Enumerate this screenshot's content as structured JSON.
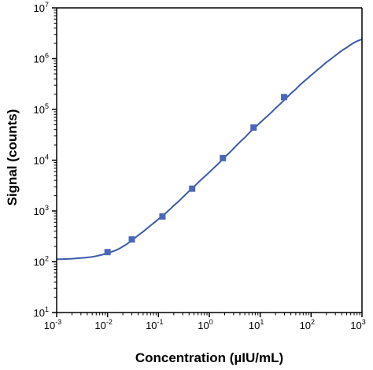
{
  "chart_data": {
    "type": "scatter",
    "xlabel": "Concentration (µIU/mL)",
    "ylabel": "Signal (counts)",
    "x_scale": "log",
    "y_scale": "log",
    "xlim": [
      0.001,
      1000
    ],
    "ylim": [
      10,
      10000000
    ],
    "x_ticks": [
      {
        "base": "10",
        "exp": "-3"
      },
      {
        "base": "10",
        "exp": "-2"
      },
      {
        "base": "10",
        "exp": "-1"
      },
      {
        "base": "10",
        "exp": "0"
      },
      {
        "base": "10",
        "exp": "1"
      },
      {
        "base": "10",
        "exp": "2"
      },
      {
        "base": "10",
        "exp": "3"
      }
    ],
    "y_ticks": [
      {
        "base": "10",
        "exp": "1"
      },
      {
        "base": "10",
        "exp": "2"
      },
      {
        "base": "10",
        "exp": "3"
      },
      {
        "base": "10",
        "exp": "4"
      },
      {
        "base": "10",
        "exp": "5"
      },
      {
        "base": "10",
        "exp": "6"
      },
      {
        "base": "10",
        "exp": "7"
      }
    ],
    "grid": false,
    "series": [
      {
        "kind": "points",
        "marker": "square",
        "color": "#4a66ba",
        "x": [
          0.01,
          0.03,
          0.12,
          0.46,
          1.85,
          7.4,
          29.5
        ],
        "y": [
          155,
          275,
          780,
          2750,
          11000,
          44000,
          175000
        ]
      },
      {
        "kind": "fit-curve",
        "color": "#3d5aab",
        "x": [
          0.001,
          0.002,
          0.005,
          0.01,
          0.02,
          0.05,
          0.1,
          0.2,
          0.5,
          1,
          2,
          5,
          10,
          20,
          50,
          100,
          200,
          500,
          1000
        ],
        "y": [
          112,
          115,
          125,
          148,
          200,
          390,
          690,
          1280,
          3000,
          5800,
          11500,
          28000,
          55000,
          106000,
          250000,
          470000,
          850000,
          1650000,
          2400000
        ]
      }
    ]
  }
}
